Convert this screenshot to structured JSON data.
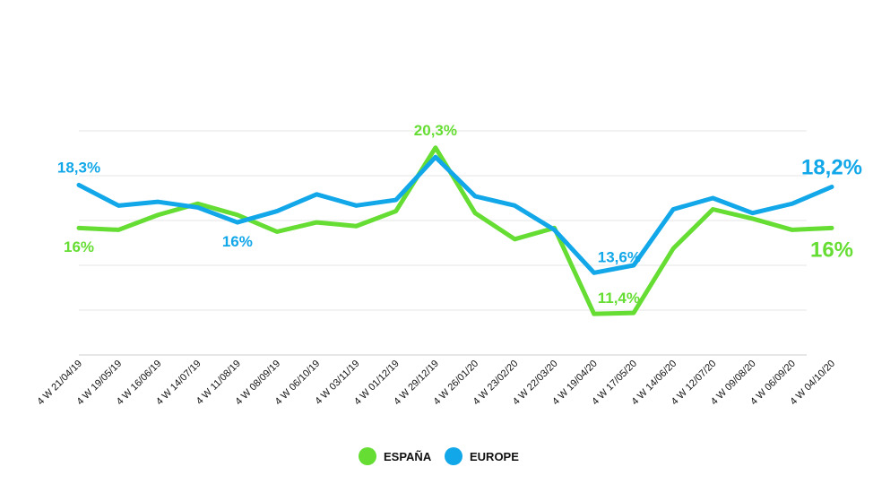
{
  "chart_data": {
    "type": "line",
    "title": "",
    "xlabel": "",
    "ylabel": "",
    "ylim": [
      9.2,
      21.2
    ],
    "grid": true,
    "legend_placement": "bottom-center",
    "categories": [
      "4 W 21/04/19",
      "4 W 19/05/19",
      "4 W 16/06/19",
      "4 W 14/07/19",
      "4 W 11/08/19",
      "4 W 08/09/19",
      "4 W 06/10/19",
      "4 W 03/11/19",
      "4 W 01/12/19",
      "4 W 29/12/19",
      "4 W 26/01/20",
      "4 W 23/02/20",
      "4 W 22/03/20",
      "4 W 19/04/20",
      "4 W 17/05/20",
      "4 W 14/06/20",
      "4 W 12/07/20",
      "4 W 09/08/20",
      "4 W 06/09/20",
      "4 W 04/10/20"
    ],
    "series": [
      {
        "name": "ESPAÑA",
        "color": "#66dd33",
        "values": [
          16,
          15.9,
          16.7,
          17.3,
          16.7,
          15.8,
          16.3,
          16.1,
          16.9,
          20.3,
          16.8,
          15.4,
          16.0,
          11.4,
          11.45,
          14.9,
          17.0,
          16.5,
          15.9,
          16.0
        ]
      },
      {
        "name": "EUROPE",
        "color": "#11a7e8",
        "values": [
          18.3,
          17.2,
          17.4,
          17.1,
          16.3,
          16.9,
          17.8,
          17.2,
          17.5,
          19.8,
          17.7,
          17.2,
          15.9,
          13.6,
          14.0,
          17.0,
          17.6,
          16.8,
          17.3,
          18.2
        ]
      }
    ],
    "annotations": [
      {
        "text": "18,3%",
        "series": 1,
        "index": 0,
        "pos": "above",
        "size": 17
      },
      {
        "text": "16%",
        "series": 0,
        "index": 0,
        "pos": "below",
        "size": 17
      },
      {
        "text": "16%",
        "series": 1,
        "index": 4,
        "pos": "below",
        "size": 17
      },
      {
        "text": "20,3%",
        "series": 0,
        "index": 9,
        "pos": "above",
        "size": 17
      },
      {
        "text": "13,6%",
        "series": 1,
        "index": 13,
        "pos": "above-right",
        "size": 17
      },
      {
        "text": "11,4%",
        "series": 0,
        "index": 13,
        "pos": "above-right",
        "size": 17
      },
      {
        "text": "18,2%",
        "series": 1,
        "index": 19,
        "pos": "above",
        "size": 24
      },
      {
        "text": "16%",
        "series": 0,
        "index": 19,
        "pos": "below",
        "size": 24
      }
    ]
  }
}
